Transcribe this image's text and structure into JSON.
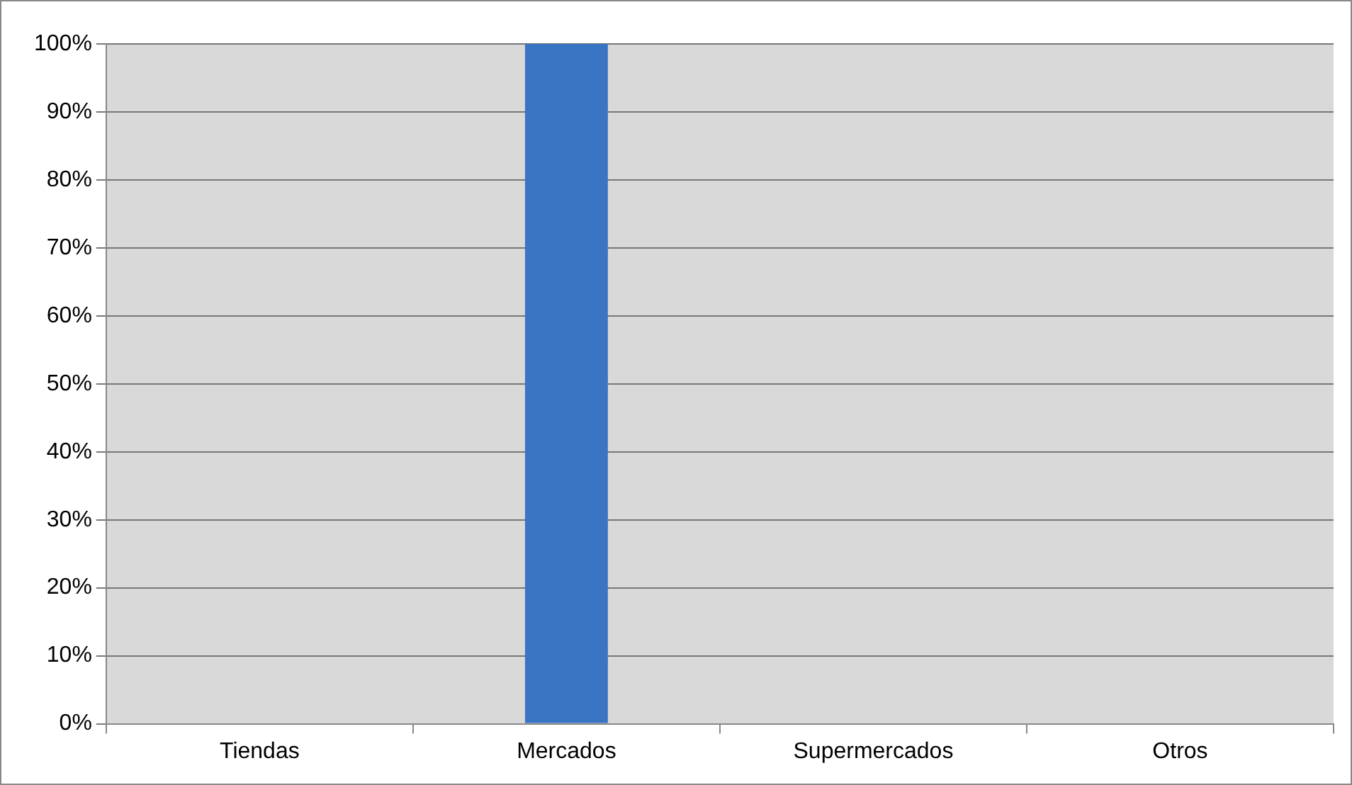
{
  "chart_data": {
    "type": "bar",
    "categories": [
      "Tiendas",
      "Mercados",
      "Supermercados",
      "Otros"
    ],
    "values": [
      0,
      100,
      0,
      0
    ],
    "color": "#3a75c4",
    "ylim": [
      0,
      100
    ],
    "yticks": [
      {
        "value": 0,
        "label": "0%"
      },
      {
        "value": 10,
        "label": "10%"
      },
      {
        "value": 20,
        "label": "20%"
      },
      {
        "value": 30,
        "label": "30%"
      },
      {
        "value": 40,
        "label": "40%"
      },
      {
        "value": 50,
        "label": "50%"
      },
      {
        "value": 60,
        "label": "60%"
      },
      {
        "value": 70,
        "label": "70%"
      },
      {
        "value": 80,
        "label": "80%"
      },
      {
        "value": 90,
        "label": "90%"
      },
      {
        "value": 100,
        "label": "100%"
      }
    ],
    "grid": "y"
  }
}
